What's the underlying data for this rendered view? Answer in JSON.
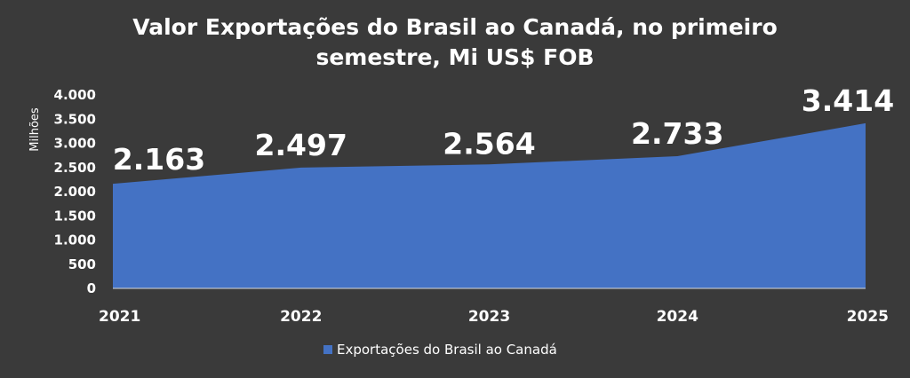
{
  "chart_data": {
    "type": "area",
    "title_lines": [
      "Valor Exportações do Brasil ao Canadá, no primeiro",
      "semestre, Mi US$ FOB"
    ],
    "ylabel": "Milhões",
    "xlabel": "",
    "categories": [
      "2021",
      "2022",
      "2023",
      "2024",
      "2025"
    ],
    "series": [
      {
        "name": "Exportações do Brasil ao Canadá",
        "values": [
          2163,
          2497,
          2564,
          2733,
          3414
        ],
        "labels": [
          "2.163",
          "2.497",
          "2.564",
          "2.733",
          "3.414"
        ],
        "color": "#4472c4"
      }
    ],
    "ylim": [
      0,
      4000
    ],
    "yticks": [
      {
        "value": 0,
        "label": "0"
      },
      {
        "value": 500,
        "label": "500"
      },
      {
        "value": 1000,
        "label": "1.000"
      },
      {
        "value": 1500,
        "label": "1.500"
      },
      {
        "value": 2000,
        "label": "2.000"
      },
      {
        "value": 2500,
        "label": "2.500"
      },
      {
        "value": 3000,
        "label": "3.000"
      },
      {
        "value": 3500,
        "label": "3.500"
      },
      {
        "value": 4000,
        "label": "4.000"
      }
    ],
    "grid": false,
    "legend_position": "bottom",
    "background_color": "#3a3a3a",
    "text_color": "#ffffff"
  }
}
